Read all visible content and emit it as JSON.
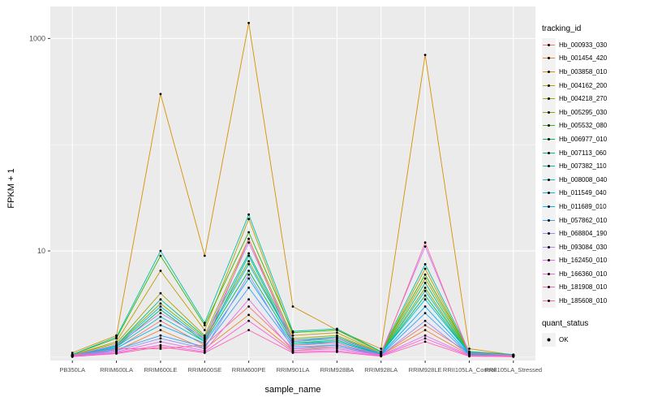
{
  "chart_data": {
    "type": "line",
    "title": "",
    "xlabel": "sample_name",
    "ylabel": "FPKM + 1",
    "y_scale": "log10",
    "ylim": [
      0.93,
      2000
    ],
    "y_ticks": [
      10,
      1000
    ],
    "y_tick_labels": [
      "10",
      "1000"
    ],
    "y_minor": [
      1,
      100
    ],
    "grid": true,
    "legend_position": "right",
    "panel_bg": "#EBEBEB",
    "grid_color": "#FFFFFF",
    "point_color": "#000000",
    "categories": [
      "PB350LA",
      "RRIM600LA",
      "RRIM600LE",
      "RRIM600SE",
      "RRIM600PE",
      "RRIM901LA",
      "RRIM928BA",
      "RRIM928LA",
      "RRIM928LE",
      "RRII105LA_Control",
      "RRII105LA_Stressed"
    ],
    "series": [
      {
        "name": "Hb_000933_030",
        "color": "#F8766D",
        "values": [
          1.05,
          1.2,
          2.2,
          1.3,
          3.0,
          1.2,
          1.3,
          1.05,
          2.0,
          1.1,
          1.05
        ]
      },
      {
        "name": "Hb_001454_420",
        "color": "#EA8331",
        "values": [
          1.02,
          1.15,
          1.8,
          1.2,
          2.5,
          1.15,
          1.25,
          1.05,
          1.8,
          1.05,
          1.02
        ]
      },
      {
        "name": "Hb_003858_010",
        "color": "#D89000",
        "values": [
          1.1,
          1.6,
          300,
          9,
          1400,
          3,
          1.8,
          1.2,
          700,
          1.2,
          1.05
        ]
      },
      {
        "name": "Hb_004162_200",
        "color": "#C09B00",
        "values": [
          1.05,
          1.4,
          6.5,
          1.8,
          20,
          1.6,
          1.7,
          1.1,
          6.8,
          1.1,
          1.05
        ]
      },
      {
        "name": "Hb_004218_270",
        "color": "#A3A500",
        "values": [
          1.05,
          1.35,
          4.0,
          1.6,
          13,
          1.5,
          1.6,
          1.1,
          5.5,
          1.1,
          1.05
        ]
      },
      {
        "name": "Hb_005295_030",
        "color": "#7CAE00",
        "values": [
          1.03,
          1.3,
          3.2,
          1.5,
          8,
          1.4,
          1.5,
          1.08,
          4.5,
          1.08,
          1.03
        ]
      },
      {
        "name": "Hb_005532_080",
        "color": "#39B600",
        "values": [
          1.06,
          1.5,
          9.0,
          2.0,
          15,
          1.7,
          1.8,
          1.12,
          6.0,
          1.12,
          1.05
        ]
      },
      {
        "name": "Hb_006977_010",
        "color": "#00BB4E",
        "values": [
          1.03,
          1.25,
          2.8,
          1.4,
          6.5,
          1.35,
          1.45,
          1.07,
          3.8,
          1.07,
          1.03
        ]
      },
      {
        "name": "Hb_007113_060",
        "color": "#00BF7D",
        "values": [
          1.04,
          1.3,
          3.5,
          1.55,
          9.5,
          1.45,
          1.55,
          1.09,
          5.0,
          1.09,
          1.04
        ]
      },
      {
        "name": "Hb_007382_110",
        "color": "#00C1A3",
        "values": [
          1.06,
          1.55,
          10,
          2.1,
          22,
          1.75,
          1.85,
          1.13,
          7.5,
          1.13,
          1.06
        ]
      },
      {
        "name": "Hb_008008_040",
        "color": "#00BFC4",
        "values": [
          1.03,
          1.25,
          2.4,
          1.4,
          9.0,
          1.35,
          1.4,
          1.07,
          4.2,
          1.07,
          1.03
        ]
      },
      {
        "name": "Hb_011549_040",
        "color": "#00BAE0",
        "values": [
          1.04,
          1.28,
          3.0,
          1.45,
          7.5,
          1.4,
          1.5,
          1.08,
          3.5,
          1.08,
          1.04
        ]
      },
      {
        "name": "Hb_011689_010",
        "color": "#00B0F6",
        "values": [
          1.03,
          1.22,
          2.0,
          1.35,
          5.5,
          1.3,
          1.4,
          1.06,
          3.0,
          1.06,
          1.03
        ]
      },
      {
        "name": "Hb_057862_010",
        "color": "#35A2FF",
        "values": [
          1.02,
          1.18,
          1.6,
          1.25,
          4.5,
          1.25,
          1.3,
          1.05,
          2.6,
          1.05,
          1.02
        ]
      },
      {
        "name": "Hb_068804_190",
        "color": "#9590FF",
        "values": [
          1.02,
          1.15,
          1.5,
          1.2,
          6.0,
          1.2,
          1.25,
          1.04,
          2.2,
          1.04,
          1.02
        ]
      },
      {
        "name": "Hb_093084_030",
        "color": "#C77CFF",
        "values": [
          1.04,
          1.3,
          2.6,
          1.5,
          12,
          1.45,
          1.5,
          1.1,
          11,
          1.1,
          1.04
        ]
      },
      {
        "name": "Hb_162450_010",
        "color": "#E76BF3",
        "values": [
          1.02,
          1.12,
          1.4,
          1.15,
          3.5,
          1.15,
          1.2,
          1.04,
          1.6,
          1.04,
          1.02
        ]
      },
      {
        "name": "Hb_166360_010",
        "color": "#FA62DB",
        "values": [
          1.01,
          1.1,
          1.3,
          1.12,
          2.2,
          1.12,
          1.15,
          1.03,
          1.5,
          1.03,
          1.01
        ]
      },
      {
        "name": "Hb_181908_010",
        "color": "#FF62BC",
        "values": [
          1.01,
          1.08,
          1.25,
          1.1,
          1.8,
          1.1,
          1.12,
          1.02,
          1.4,
          1.02,
          1.01
        ]
      },
      {
        "name": "Hb_185608_010",
        "color": "#FF6A98",
        "values": [
          1.03,
          1.2,
          1.2,
          1.3,
          13,
          1.3,
          1.35,
          1.05,
          12,
          1.05,
          1.03
        ]
      }
    ],
    "legend": {
      "tracking_title": "tracking_id",
      "quant_title": "quant_status",
      "quant_items": [
        {
          "label": "OK"
        }
      ]
    }
  }
}
